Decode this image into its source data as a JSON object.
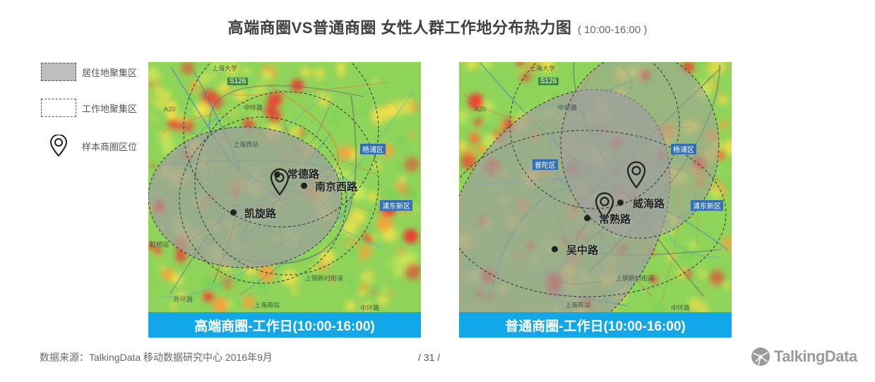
{
  "title": {
    "main": "高端商圈VS普通商圈 女性人群工作地分布热力图",
    "sub": "( 10:00-16:00 )"
  },
  "legend": {
    "items": [
      {
        "label": "居住地聚集区"
      },
      {
        "label": "工作地聚集区"
      },
      {
        "label": "样本商圈区位"
      }
    ]
  },
  "colors": {
    "caption_bg": "#12a7e9",
    "residence_fill": "#9e9e9e",
    "heat_low": "#7cd35a",
    "heat_mid": "#f3e04a",
    "heat_high": "#ee3b30"
  },
  "maps": [
    {
      "caption": "高端商圈-工作日(10:00-16:00)",
      "places": [
        "常德路",
        "南京西路",
        "凯旋路"
      ],
      "map_labels": [
        "上海大学",
        "S126",
        "A20",
        "中环路",
        "杨浦区",
        "浦东新区",
        "上海西站",
        "虹桥站",
        "上钢新村街道",
        "上海南站",
        "中环路",
        "外环路"
      ]
    },
    {
      "caption": "普通商圈-工作日(10:00-16:00)",
      "places": [
        "威海路",
        "常熟路",
        "吴中路"
      ],
      "map_labels": [
        "上海大学",
        "S126",
        "A20",
        "中环路",
        "杨浦区",
        "浦东新区",
        "普陀区",
        "上钢新村街道",
        "上海南站",
        "中环路"
      ]
    }
  ],
  "footer": {
    "source": "数据来源：TalkingData 移动数据研究中心  2016年9月",
    "page": "/  31  /",
    "logo": "TalkingData"
  }
}
